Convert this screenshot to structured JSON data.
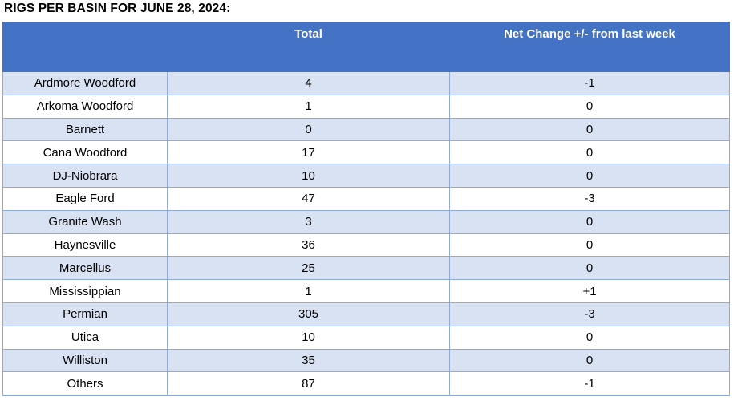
{
  "title": "RIGS PER BASIN FOR JUNE 28, 2024:",
  "colors": {
    "header_bg": "#4472C4",
    "header_text": "#FFFFFF",
    "banded_row_bg": "#D9E2F3",
    "plain_row_bg": "#FFFFFF",
    "border": "#8EAADB",
    "negative_value": "#FF0000",
    "positive_value": "#00B050",
    "neutral_value": "#000000",
    "title_text": "#000000"
  },
  "table": {
    "columns": [
      "",
      "Total",
      "Net Change +/- from last week"
    ],
    "rows": [
      {
        "basin": "Ardmore Woodford",
        "total": "4",
        "net_change": "-1"
      },
      {
        "basin": "Arkoma Woodford",
        "total": "1",
        "net_change": "0"
      },
      {
        "basin": "Barnett",
        "total": "0",
        "net_change": "0"
      },
      {
        "basin": "Cana Woodford",
        "total": "17",
        "net_change": "0"
      },
      {
        "basin": "DJ-Niobrara",
        "total": "10",
        "net_change": "0"
      },
      {
        "basin": "Eagle Ford",
        "total": "47",
        "net_change": "-3"
      },
      {
        "basin": "Granite Wash",
        "total": "3",
        "net_change": "0"
      },
      {
        "basin": "Haynesville",
        "total": "36",
        "net_change": "0"
      },
      {
        "basin": "Marcellus",
        "total": "25",
        "net_change": "0"
      },
      {
        "basin": "Mississippian",
        "total": "1",
        "net_change": "+1"
      },
      {
        "basin": "Permian",
        "total": "305",
        "net_change": "-3"
      },
      {
        "basin": "Utica",
        "total": "10",
        "net_change": "0"
      },
      {
        "basin": "Williston",
        "total": "35",
        "net_change": "0"
      },
      {
        "basin": "Others",
        "total": "87",
        "net_change": "-1"
      }
    ]
  }
}
